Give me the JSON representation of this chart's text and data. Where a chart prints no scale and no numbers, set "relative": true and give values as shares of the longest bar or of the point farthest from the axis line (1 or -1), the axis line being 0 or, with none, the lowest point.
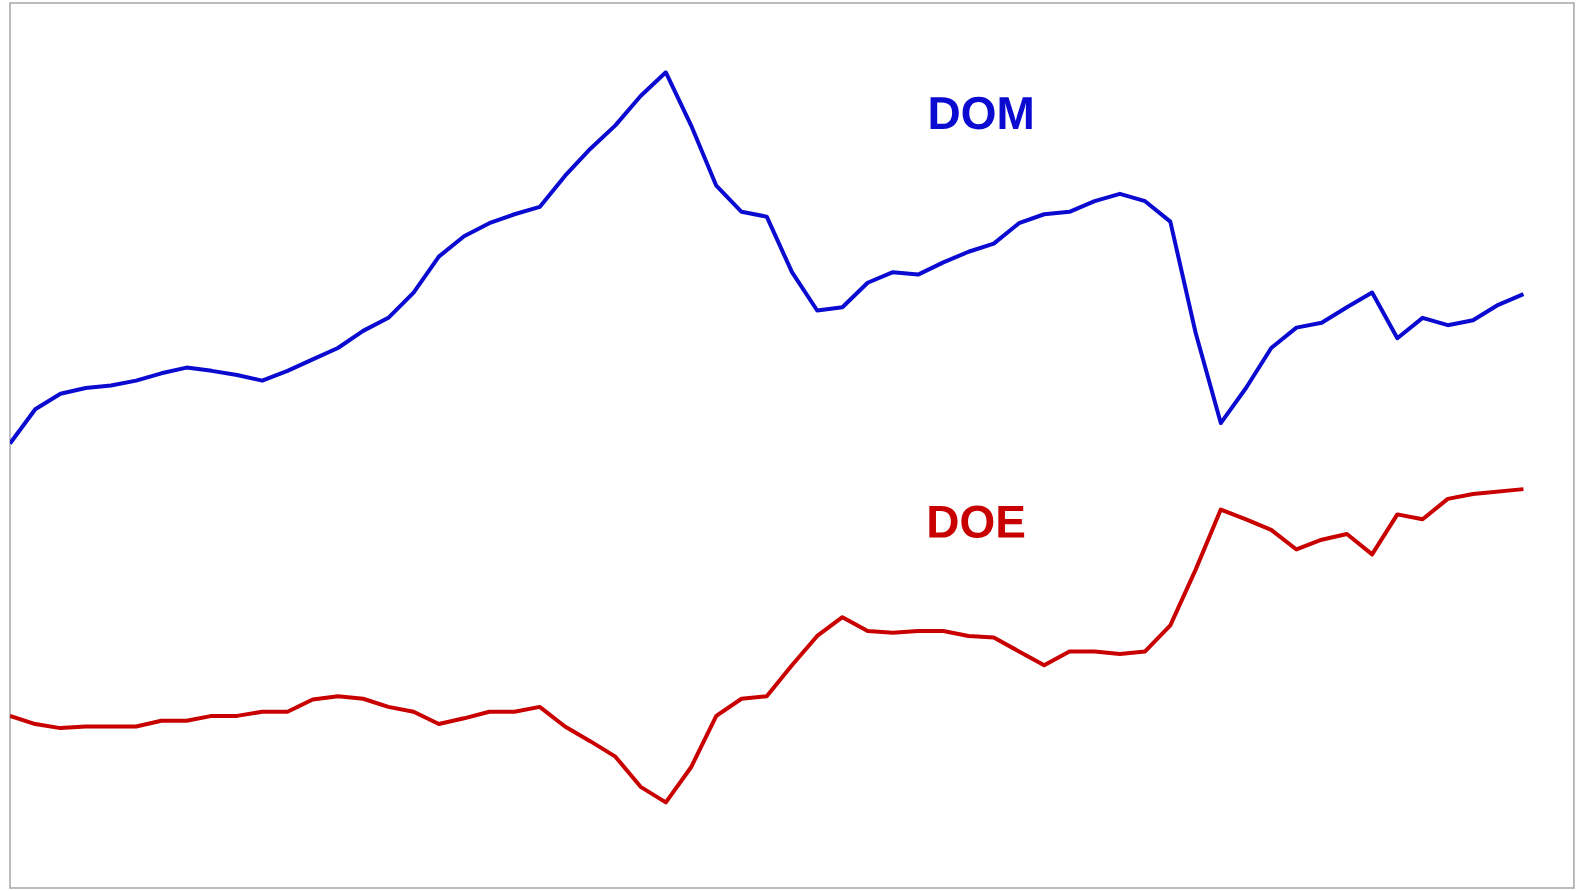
{
  "chart_data": {
    "type": "line",
    "relative": true,
    "categories": [
      null,
      null,
      null,
      null,
      null,
      null,
      null,
      null,
      null,
      null,
      null,
      null,
      null,
      null,
      null,
      null,
      null,
      null,
      null,
      null,
      null,
      null,
      null,
      null,
      null,
      null,
      null,
      null,
      null,
      null,
      null,
      null,
      null,
      null,
      null,
      null,
      null,
      null,
      null,
      null,
      null,
      null,
      null,
      null,
      null,
      null,
      null,
      null,
      null,
      null,
      null,
      null,
      null,
      null,
      null,
      null,
      null,
      null,
      null,
      null,
      null
    ],
    "series": [
      {
        "name": "DOM",
        "color": "#0a0ad0",
        "values": [
          0.545,
          0.587,
          0.606,
          0.613,
          0.616,
          0.622,
          0.631,
          0.638,
          0.634,
          0.629,
          0.622,
          0.634,
          0.648,
          0.662,
          0.683,
          0.699,
          0.73,
          0.774,
          0.799,
          0.815,
          0.826,
          0.835,
          0.873,
          0.906,
          0.935,
          0.971,
          1.0,
          0.935,
          0.861,
          0.829,
          0.823,
          0.755,
          0.708,
          0.712,
          0.742,
          0.755,
          0.752,
          0.767,
          0.78,
          0.79,
          0.815,
          0.826,
          0.829,
          0.842,
          0.851,
          0.842,
          0.817,
          0.681,
          0.57,
          0.613,
          0.662,
          0.687,
          0.693,
          0.712,
          0.73,
          0.674,
          0.699,
          0.69,
          0.696,
          0.715,
          0.728
        ]
      },
      {
        "name": "DOE",
        "color": "#c80000",
        "values": [
          0.211,
          0.201,
          0.196,
          0.198,
          0.198,
          0.198,
          0.205,
          0.205,
          0.211,
          0.211,
          0.216,
          0.216,
          0.231,
          0.235,
          0.232,
          0.222,
          0.216,
          0.201,
          0.208,
          0.216,
          0.216,
          0.222,
          0.198,
          0.18,
          0.161,
          0.124,
          0.105,
          0.148,
          0.211,
          0.232,
          0.235,
          0.273,
          0.309,
          0.332,
          0.315,
          0.313,
          0.315,
          0.315,
          0.309,
          0.307,
          0.29,
          0.273,
          0.29,
          0.29,
          0.287,
          0.29,
          0.322,
          0.39,
          0.464,
          0.452,
          0.439,
          0.415,
          0.427,
          0.434,
          0.409,
          0.458,
          0.452,
          0.477,
          0.483,
          0.486,
          0.489
        ]
      }
    ],
    "marker": "none",
    "line_style": "solid"
  }
}
